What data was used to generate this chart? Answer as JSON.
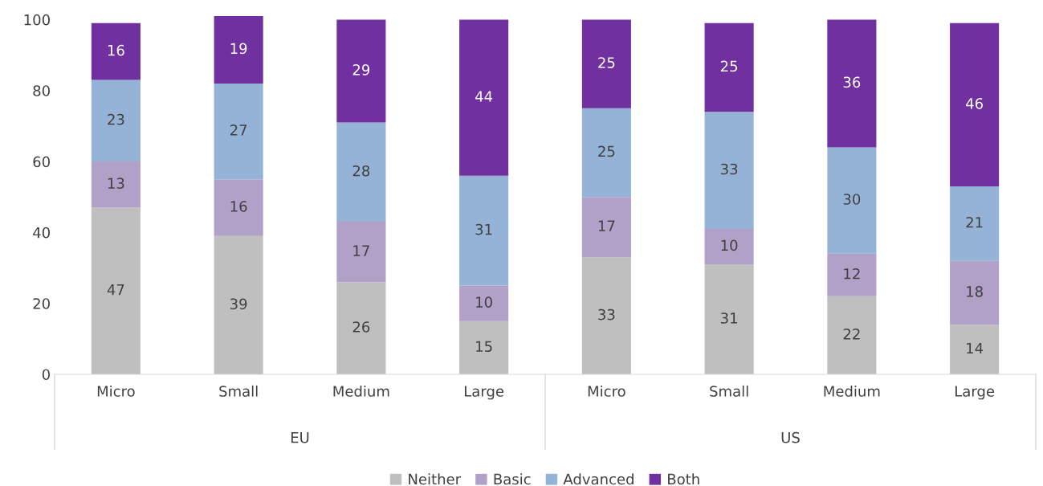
{
  "chart_data": {
    "type": "bar",
    "stacked": true,
    "data_labels": true,
    "legend": "bottom",
    "grid": false,
    "categories": [
      "Micro",
      "Small",
      "Medium",
      "Large",
      "Micro",
      "Small",
      "Medium",
      "Large"
    ],
    "annotations": [
      "EU",
      "US"
    ],
    "ylim": [
      0,
      101
    ],
    "yticks": [
      0,
      20,
      40,
      60,
      80,
      100
    ],
    "series": [
      {
        "name": "Neither",
        "color": "#bfbfbf",
        "values": [
          47,
          39,
          26,
          15,
          33,
          31,
          22,
          14
        ]
      },
      {
        "name": "Basic",
        "color": "#b1a0c7",
        "values": [
          13,
          16,
          17,
          10,
          17,
          10,
          12,
          18
        ]
      },
      {
        "name": "Advanced",
        "color": "#95b3d7",
        "values": [
          23,
          27,
          28,
          31,
          25,
          33,
          30,
          21
        ]
      },
      {
        "name": "Both",
        "color": "#7030a0",
        "values": [
          16,
          19,
          29,
          44,
          25,
          25,
          36,
          46
        ]
      }
    ]
  }
}
